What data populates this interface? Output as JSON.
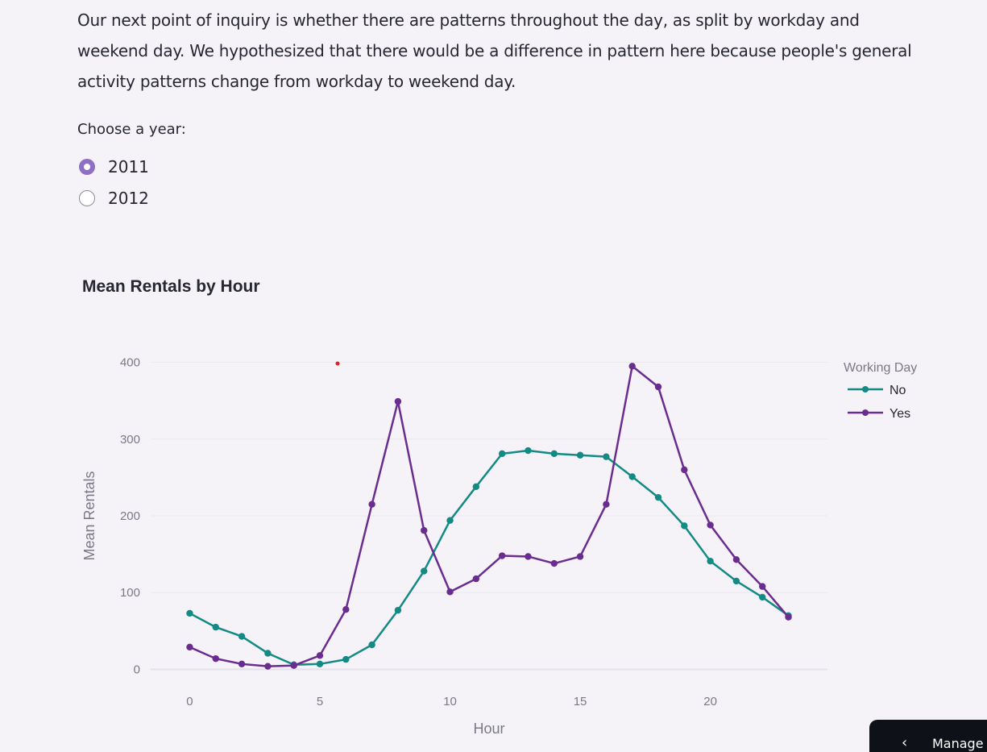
{
  "intro_text": "Our next point of inquiry is whether there are patterns throughout the day, as split by workday and weekend day. We hypothesized that there would be a difference in pattern here because people's general activity patterns change from workday to weekend day.",
  "year_selector": {
    "label": "Choose a year:",
    "options": [
      "2011",
      "2012"
    ],
    "selected": "2011"
  },
  "manage_button": {
    "label": "Manage app"
  },
  "colors": {
    "no": "#138a84",
    "yes": "#6a2d8f",
    "accent": "#8e6fc5"
  },
  "chart_data": {
    "type": "line",
    "title": "Mean Rentals by Hour",
    "xlabel": "Hour",
    "ylabel": "Mean Rentals",
    "legend_title": "Working Day",
    "legend_position": "top-right",
    "grid": true,
    "xlim": [
      -1.5,
      24.5
    ],
    "ylim": [
      -10,
      410
    ],
    "x_ticks": [
      0,
      5,
      10,
      15,
      20
    ],
    "y_ticks": [
      0,
      100,
      200,
      300,
      400
    ],
    "x": [
      0,
      1,
      2,
      3,
      4,
      5,
      6,
      7,
      8,
      9,
      10,
      11,
      12,
      13,
      14,
      15,
      16,
      17,
      18,
      19,
      20,
      21,
      22,
      23
    ],
    "series": [
      {
        "name": "No",
        "values": [
          73,
          55,
          43,
          21,
          6,
          7,
          13,
          32,
          77,
          128,
          194,
          238,
          281,
          285,
          281,
          279,
          277,
          251,
          224,
          187,
          141,
          115,
          94,
          70
        ]
      },
      {
        "name": "Yes",
        "values": [
          29,
          14,
          7,
          4,
          5,
          18,
          78,
          215,
          349,
          181,
          101,
          118,
          148,
          147,
          138,
          147,
          215,
          395,
          368,
          260,
          188,
          143,
          108,
          68
        ]
      }
    ]
  }
}
